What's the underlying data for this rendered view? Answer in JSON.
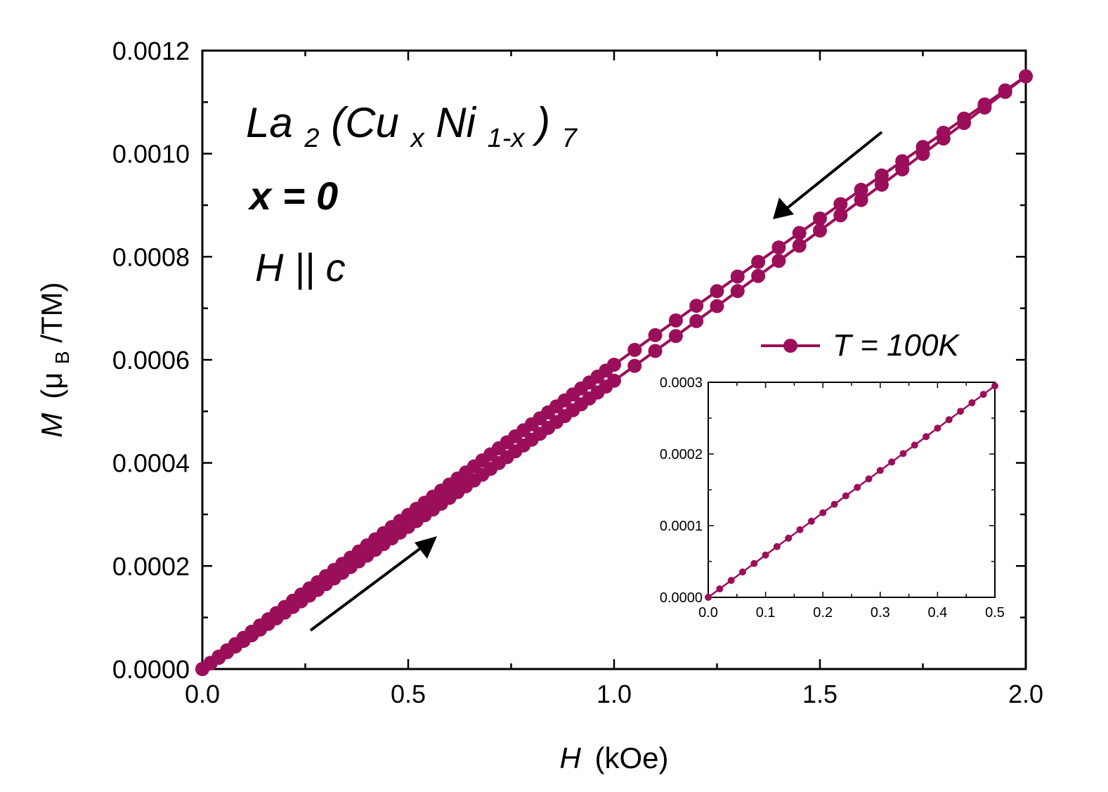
{
  "chart_data": [
    {
      "type": "line",
      "role": "main",
      "xlabel_symbol": "H",
      "xlabel_unit": "(kOe)",
      "ylabel_symbol": "M",
      "ylabel_unit_open": "(μ",
      "ylabel_unit_sub": "B",
      "ylabel_unit_close": "/TM)",
      "xlim": [
        0,
        2.0
      ],
      "ylim": [
        0,
        0.0012
      ],
      "xticks": [
        0.0,
        0.5,
        1.0,
        1.5,
        2.0
      ],
      "xtick_labels": [
        "0.0",
        "0.5",
        "1.0",
        "1.5",
        "2.0"
      ],
      "yticks": [
        0,
        0.0002,
        0.0004,
        0.0006,
        0.0008,
        0.001,
        0.0012
      ],
      "ytick_labels": [
        "0.0000",
        "0.0002",
        "0.0004",
        "0.0006",
        "0.0008",
        "0.0010",
        "0.0012"
      ],
      "series": [
        {
          "name": "T = 100K (field increasing)",
          "color": "#9b0f5a",
          "x_start": 0.0,
          "x_end": 2.0,
          "x_step_low": 0.02,
          "x_step_high": 0.05,
          "x_switch": 1.0,
          "y_start": 0.0,
          "y_end": 0.00115,
          "curvature": -1.55e-05
        },
        {
          "name": "T = 100K (field decreasing)",
          "color": "#9b0f5a",
          "x_start": 0.0,
          "x_end": 2.0,
          "x_step_low": 0.02,
          "x_step_high": 0.05,
          "x_switch": 1.0,
          "y_start": 0.0,
          "y_end": 0.00115,
          "curvature": 1.55e-05
        }
      ],
      "legend": {
        "label": "T = 100K",
        "placement": "top-right of inset"
      },
      "annotations": {
        "compound_main": "La",
        "compound_sub1": "2",
        "compound_mid1": "(Cu",
        "compound_sub2": "x",
        "compound_mid2": "Ni",
        "compound_sub3": "1-x",
        "compound_mid3": ")",
        "compound_sub4": "7",
        "composition": "x = 0",
        "field_direction": "H || c",
        "arrow_up_direction": "increasing field",
        "arrow_down_direction": "decreasing field"
      }
    },
    {
      "type": "line",
      "role": "inset",
      "xlim": [
        0,
        0.5
      ],
      "ylim": [
        0,
        0.0003
      ],
      "xticks": [
        0.0,
        0.1,
        0.2,
        0.3,
        0.4,
        0.5
      ],
      "xtick_labels": [
        "0.0",
        "0.1",
        "0.2",
        "0.3",
        "0.4",
        "0.5"
      ],
      "yticks": [
        0,
        0.0001,
        0.0002,
        0.0003
      ],
      "ytick_labels": [
        "0.0000",
        "0.0001",
        "0.0002",
        "0.0003"
      ],
      "series": [
        {
          "name": "T = 100K",
          "color": "#9b0f5a",
          "x_start": 0.0,
          "x_end": 0.5,
          "x_step": 0.02,
          "y_start": 0.0,
          "y_end": 0.000295
        }
      ]
    }
  ]
}
